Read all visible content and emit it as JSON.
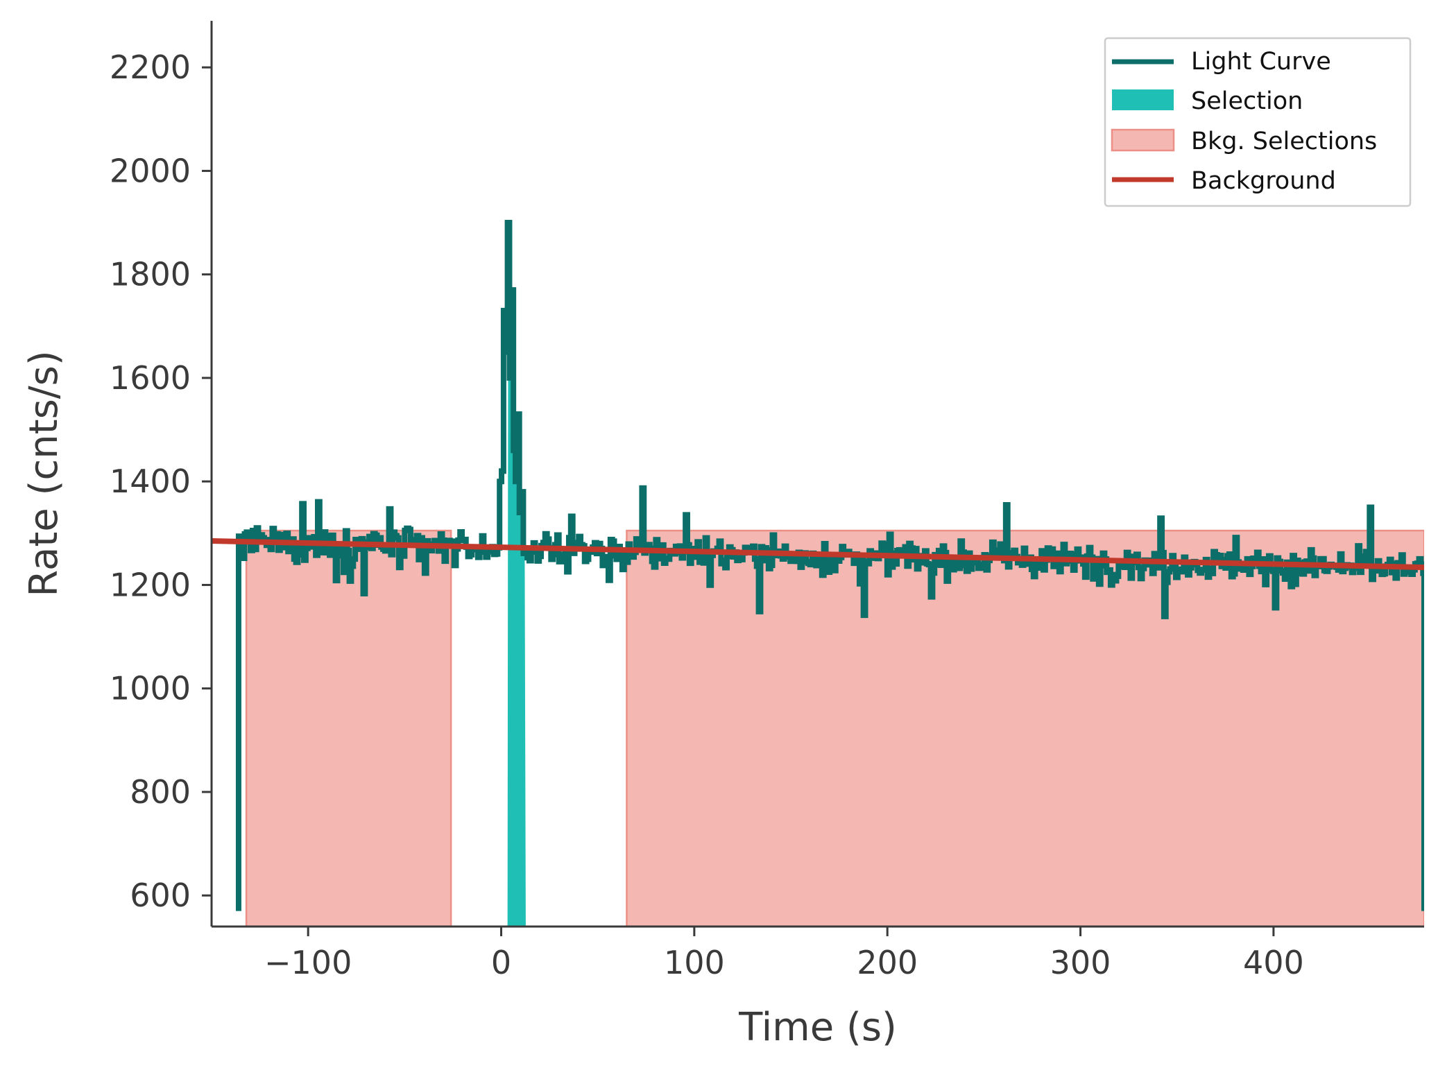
{
  "chart_data": {
    "type": "line",
    "title": "",
    "xlabel": "Time (s)",
    "ylabel": "Rate (cnts/s)",
    "xlim": [
      -150,
      478
    ],
    "ylim": [
      540,
      2290
    ],
    "xticks": [
      -100,
      0,
      100,
      200,
      300,
      400
    ],
    "xtick_labels": [
      "−100",
      "0",
      "100",
      "200",
      "300",
      "400"
    ],
    "yticks": [
      600,
      800,
      1000,
      1200,
      1400,
      1600,
      1800,
      2000,
      2200
    ],
    "ytick_labels": [
      "600",
      "800",
      "1000",
      "1200",
      "1400",
      "1600",
      "1800",
      "2000",
      "2200"
    ],
    "grid": false,
    "legend_position": "top-right",
    "legend": [
      "Light Curve",
      "Selection",
      "Bkg. Selections",
      "Background"
    ],
    "colors": {
      "light_curve": "#0b6e69",
      "selection": "#20bfb5",
      "bkg_selection_fill": "#f5b7b1",
      "bkg_selection_edge": "#ec8f86",
      "background": "#c0392b",
      "axis": "#3a3a3a"
    },
    "light_curve": {
      "bin_width_s": 1.024,
      "t_start": -136,
      "t_end": 478,
      "baseline": 1280,
      "slope_per_s": -0.08,
      "noise": 28,
      "edge_drop_value": 570,
      "pulse_points": [
        {
          "t": -1,
          "rate": 1400
        },
        {
          "t": 0,
          "rate": 1420
        },
        {
          "t": 1,
          "rate": 1730
        },
        {
          "t": 2,
          "rate": 1650
        },
        {
          "t": 3,
          "rate": 1900
        },
        {
          "t": 4,
          "rate": 1600
        },
        {
          "t": 5,
          "rate": 1770
        },
        {
          "t": 6,
          "rate": 1460
        },
        {
          "t": 7,
          "rate": 1400
        },
        {
          "t": 8,
          "rate": 1530
        },
        {
          "t": 9,
          "rate": 1340
        },
        {
          "t": 10,
          "rate": 1380
        }
      ]
    },
    "selection_interval": [
      4,
      12
    ],
    "bkg_selections": [
      [
        -132,
        -26
      ],
      [
        65,
        478
      ]
    ],
    "background_fit": {
      "t0": -150,
      "rate0": 1285,
      "t1": 478,
      "rate1": 1234
    }
  }
}
